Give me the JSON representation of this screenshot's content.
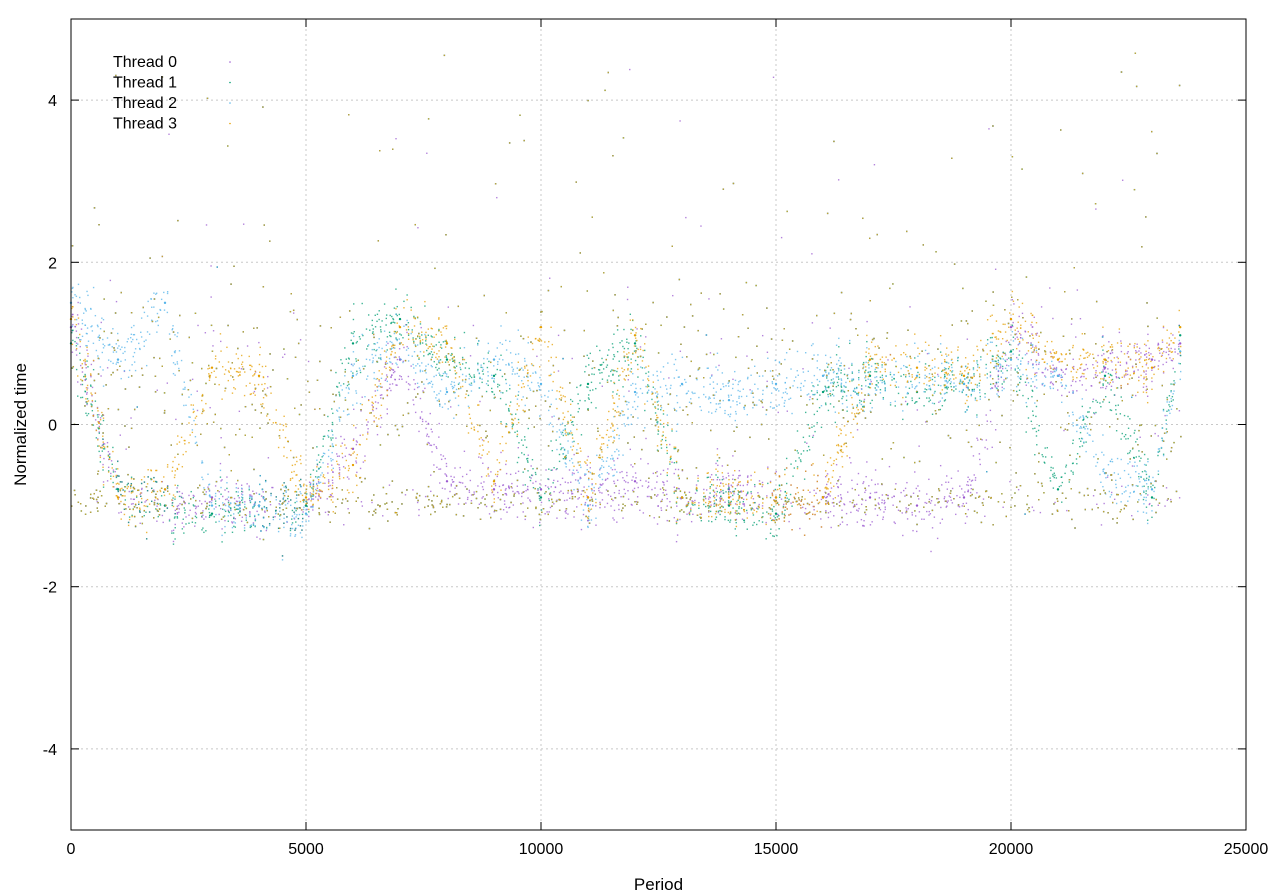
{
  "chart_data": {
    "type": "scatter",
    "xlabel": "Period",
    "ylabel": "Normalized time",
    "xlim": [
      0,
      25000
    ],
    "ylim": [
      -5,
      5
    ],
    "x_ticks": [
      0,
      5000,
      10000,
      15000,
      20000,
      25000
    ],
    "y_ticks": [
      -4,
      -2,
      0,
      2,
      4
    ],
    "x_tick_labels": [
      "0",
      "5000",
      "10000",
      "15000",
      "20000",
      "25000"
    ],
    "y_tick_labels": [
      "-4",
      "-2",
      "0",
      "2",
      "4"
    ],
    "grid": true,
    "legend_position": "top-left",
    "series": [
      {
        "name": "Thread 0",
        "color": "#9b59d0",
        "x": [
          0,
          1000,
          2000,
          3000,
          4000,
          5000,
          6000,
          7000,
          8000,
          9000,
          10000,
          11000,
          12000,
          13000,
          14000,
          15000,
          16000,
          17000,
          18000,
          19000,
          20000,
          21000,
          22000,
          23000,
          23600
        ],
        "y": [
          1.2,
          -0.8,
          -1.0,
          -0.9,
          -1.0,
          -1.0,
          -0.3,
          0.8,
          -0.7,
          -0.8,
          -0.8,
          -0.9,
          -0.7,
          -0.9,
          -0.8,
          -0.9,
          -0.9,
          -0.9,
          -1.0,
          -0.9,
          1.2,
          0.6,
          0.7,
          0.8,
          1.0
        ]
      },
      {
        "name": "Thread 1",
        "color": "#009e73",
        "x": [
          0,
          1000,
          2000,
          3000,
          4000,
          5000,
          6000,
          7000,
          8000,
          9000,
          10000,
          11000,
          12000,
          13000,
          14000,
          15000,
          16000,
          17000,
          18000,
          19000,
          20000,
          21000,
          22000,
          23000,
          23600
        ],
        "y": [
          1.0,
          -0.8,
          -1.0,
          -1.1,
          -1.0,
          -1.0,
          1.0,
          1.3,
          0.8,
          0.6,
          -0.9,
          0.5,
          1.0,
          -0.9,
          -1.0,
          -1.1,
          0.4,
          0.6,
          0.4,
          0.5,
          0.9,
          -0.8,
          0.6,
          -0.9,
          1.1
        ]
      },
      {
        "name": "Thread 2",
        "color": "#56b4e9",
        "x": [
          0,
          1000,
          2000,
          3000,
          4000,
          5000,
          6000,
          7000,
          8000,
          9000,
          10000,
          11000,
          12000,
          13000,
          14000,
          15000,
          16000,
          17000,
          18000,
          19000,
          20000,
          21000,
          22000,
          23000,
          23600
        ],
        "y": [
          1.5,
          0.8,
          1.5,
          -1.0,
          -1.0,
          -1.1,
          0.6,
          1.0,
          0.4,
          0.8,
          0.5,
          -1.0,
          0.4,
          0.5,
          0.3,
          0.5,
          0.6,
          0.5,
          0.6,
          0.5,
          0.8,
          0.6,
          -0.6,
          -0.8,
          0.9
        ]
      },
      {
        "name": "Thread 3",
        "color": "#e69f00",
        "x": [
          0,
          1000,
          2000,
          3000,
          4000,
          5000,
          6000,
          7000,
          8000,
          9000,
          10000,
          11000,
          12000,
          13000,
          14000,
          15000,
          16000,
          17000,
          18000,
          19000,
          20000,
          21000,
          22000,
          23000,
          23600
        ],
        "y": [
          1.3,
          -0.9,
          -0.8,
          0.7,
          0.6,
          -0.9,
          -0.5,
          1.2,
          1.0,
          -0.7,
          1.2,
          -0.9,
          1.1,
          -0.9,
          -0.9,
          -0.9,
          -0.9,
          0.8,
          0.7,
          0.6,
          1.3,
          0.8,
          0.8,
          0.7,
          1.2
        ]
      }
    ]
  }
}
